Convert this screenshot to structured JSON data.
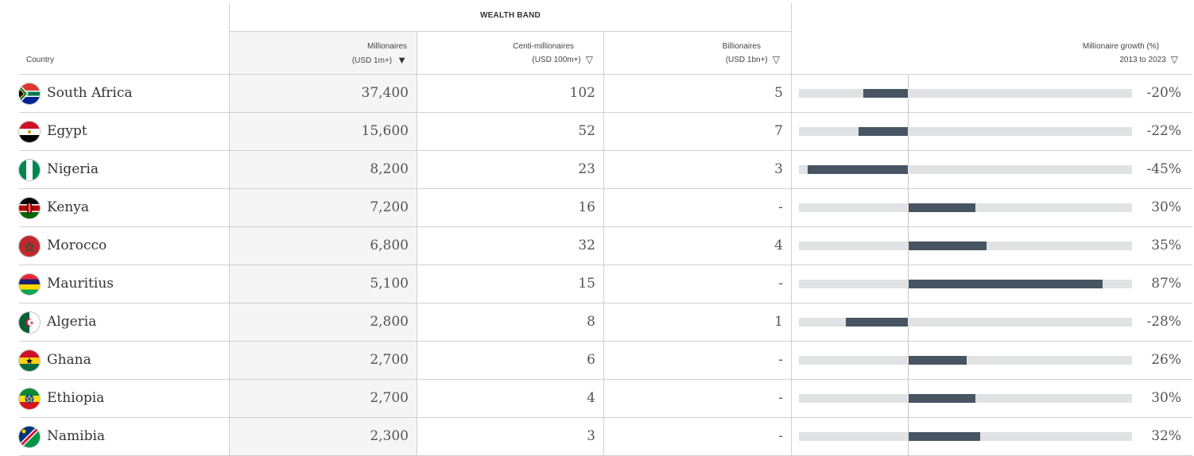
{
  "header": {
    "group_label": "WEALTH BAND",
    "country": "Country",
    "millionaires": {
      "line1": "Millionaires",
      "line2": "(USD 1m+)"
    },
    "centi": {
      "line1": "Centi-millionaires",
      "line2": "(USD 100m+)"
    },
    "billionaires": {
      "line1": "Billionaires",
      "line2": "(USD 1bn+)"
    },
    "growth": {
      "line1": "Millionaire growth (%)",
      "line2": "2013 to 2023"
    },
    "sort_active_icon": "▼",
    "sort_icon": "▽"
  },
  "colors": {
    "bar": "#475562",
    "track": "#e1e2e4",
    "sorted_column_bg": "#f5f5f5"
  },
  "chart_data": {
    "type": "table",
    "columns": [
      "Country",
      "Millionaires (USD 1m+)",
      "Centi-millionaires (USD 100m+)",
      "Billionaires (USD 1bn+)",
      "Millionaire growth (%) 2013 to 2023"
    ],
    "growth_bar_range": [
      -50,
      100
    ],
    "rows": [
      {
        "country": "South Africa",
        "flag": "south-africa-flag",
        "millionaires": "37,400",
        "centi": "102",
        "billionaires": "5",
        "growth": -20,
        "growth_label": "-20%"
      },
      {
        "country": "Egypt",
        "flag": "egypt-flag",
        "millionaires": "15,600",
        "centi": "52",
        "billionaires": "7",
        "growth": -22,
        "growth_label": "-22%"
      },
      {
        "country": "Nigeria",
        "flag": "nigeria-flag",
        "millionaires": "8,200",
        "centi": "23",
        "billionaires": "3",
        "growth": -45,
        "growth_label": "-45%"
      },
      {
        "country": "Kenya",
        "flag": "kenya-flag",
        "millionaires": "7,200",
        "centi": "16",
        "billionaires": "-",
        "growth": 30,
        "growth_label": "30%"
      },
      {
        "country": "Morocco",
        "flag": "morocco-flag",
        "millionaires": "6,800",
        "centi": "32",
        "billionaires": "4",
        "growth": 35,
        "growth_label": "35%"
      },
      {
        "country": "Mauritius",
        "flag": "mauritius-flag",
        "millionaires": "5,100",
        "centi": "15",
        "billionaires": "-",
        "growth": 87,
        "growth_label": "87%"
      },
      {
        "country": "Algeria",
        "flag": "algeria-flag",
        "millionaires": "2,800",
        "centi": "8",
        "billionaires": "1",
        "growth": -28,
        "growth_label": "-28%"
      },
      {
        "country": "Ghana",
        "flag": "ghana-flag",
        "millionaires": "2,700",
        "centi": "6",
        "billionaires": "-",
        "growth": 26,
        "growth_label": "26%"
      },
      {
        "country": "Ethiopia",
        "flag": "ethiopia-flag",
        "millionaires": "2,700",
        "centi": "4",
        "billionaires": "-",
        "growth": 30,
        "growth_label": "30%"
      },
      {
        "country": "Namibia",
        "flag": "namibia-flag",
        "millionaires": "2,300",
        "centi": "3",
        "billionaires": "-",
        "growth": 32,
        "growth_label": "32%"
      }
    ]
  }
}
